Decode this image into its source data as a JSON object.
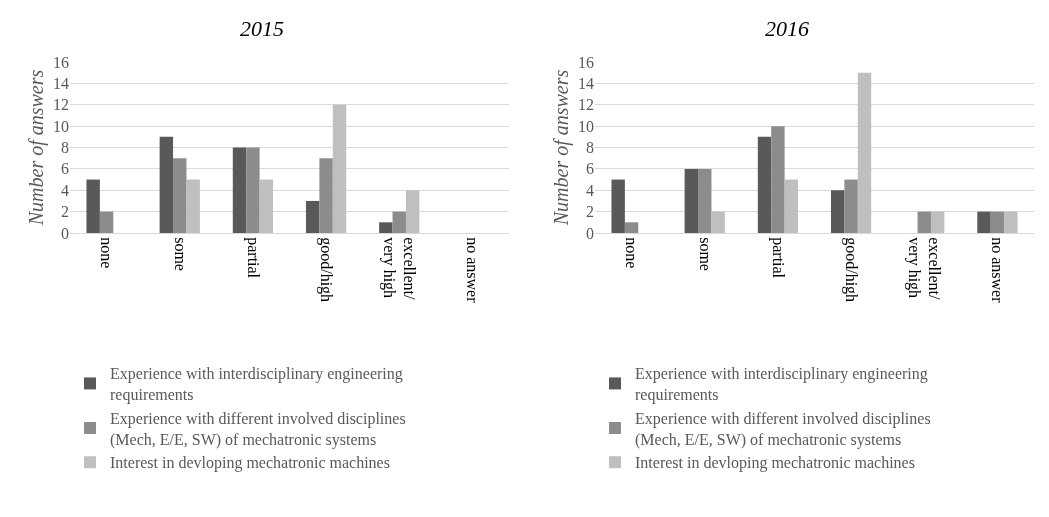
{
  "chart_data": [
    {
      "type": "bar",
      "title": "2015",
      "ylabel": "Number of answers",
      "categories": [
        "none",
        "some",
        "partial",
        "good/high",
        "excellent/ very high",
        "no answer"
      ],
      "series": [
        {
          "name": "Experience with interdisciplinary engineering requirements",
          "color": "#595959",
          "values": [
            5,
            9,
            8,
            3,
            1,
            0
          ]
        },
        {
          "name": "Experience with different involved disciplines (Mech, E/E, SW) of mechatronic systems",
          "color": "#8c8c8c",
          "values": [
            2,
            7,
            8,
            7,
            2,
            0
          ]
        },
        {
          "name": "Interest in devloping mechatronic machines",
          "color": "#bfbfbf",
          "values": [
            0,
            5,
            5,
            12,
            4,
            0
          ]
        }
      ],
      "ylim": [
        0,
        16
      ],
      "yticks": [
        0,
        2,
        4,
        6,
        8,
        10,
        12,
        14,
        16
      ],
      "grid": "y",
      "legend": "bottom"
    },
    {
      "type": "bar",
      "title": "2016",
      "ylabel": "Number of answers",
      "categories": [
        "none",
        "some",
        "partial",
        "good/high",
        "excellent/ very high",
        "no answer"
      ],
      "series": [
        {
          "name": "Experience with interdisciplinary engineering requirements",
          "color": "#595959",
          "values": [
            5,
            6,
            9,
            4,
            0,
            2
          ]
        },
        {
          "name": "Experience with different involved disciplines (Mech, E/E, SW) of mechatronic systems",
          "color": "#8c8c8c",
          "values": [
            1,
            6,
            10,
            5,
            2,
            2
          ]
        },
        {
          "name": "Interest in devloping mechatronic machines",
          "color": "#bfbfbf",
          "values": [
            0,
            2,
            5,
            15,
            2,
            2
          ]
        }
      ],
      "ylim": [
        0,
        16
      ],
      "yticks": [
        0,
        2,
        4,
        6,
        8,
        10,
        12,
        14,
        16
      ],
      "grid": "y",
      "legend": "bottom"
    }
  ]
}
